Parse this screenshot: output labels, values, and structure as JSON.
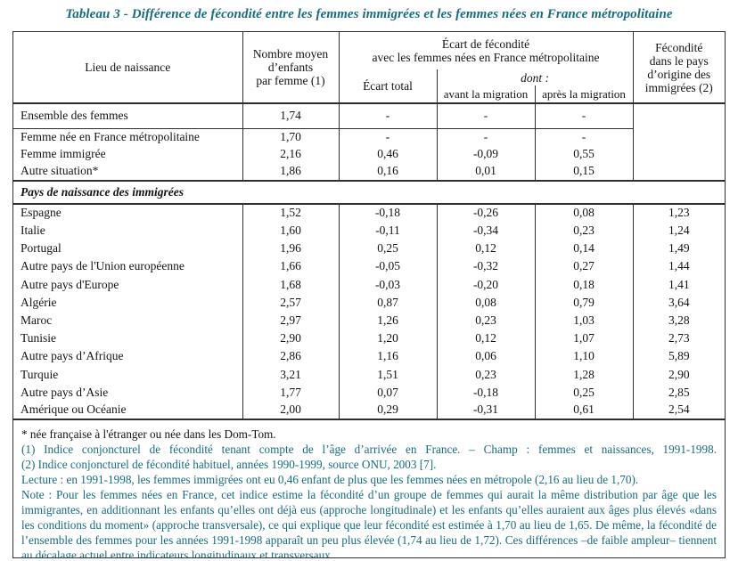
{
  "title": "Tableau 3 - Différence de fécondité entre les femmes immigrées et les femmes nées en France métropolitaine",
  "table": {
    "header": {
      "lieu_de_naissance": "Lieu de naissance",
      "nombre_moyen": "Nombre moyen\nd’enfants\npar femme (1)",
      "ecart_group": "Écart de fécondité\navec les femmes nées en France métropolitaine",
      "ecart_total": "Écart total",
      "dont": "dont :",
      "avant_migration": "avant la migration",
      "apres_migration": "après la migration",
      "fecondite_origine": "Fécondité\ndans le pays\nd’origine des\nimmigrées (2)"
    },
    "summary_rows": [
      {
        "label": "Ensemble des femmes",
        "values": [
          "1,74",
          "-",
          "-",
          "-"
        ]
      },
      {
        "label": "Femme née en France métropolitaine",
        "values": [
          "1,70",
          "-",
          "-",
          "-"
        ]
      },
      {
        "label": "Femme immigrée",
        "values": [
          "2,16",
          "0,46",
          "-0,09",
          "0,55"
        ]
      },
      {
        "label": "Autre situation*",
        "values": [
          "1,86",
          "0,16",
          "0,01",
          "0,15"
        ]
      }
    ],
    "section_header": "Pays de naissance des immigrées",
    "country_rows": [
      {
        "label": "Espagne",
        "values": [
          "1,52",
          "-0,18",
          "-0,26",
          "0,08",
          "1,23"
        ]
      },
      {
        "label": "Italie",
        "values": [
          "1,60",
          "-0,11",
          "-0,34",
          "0,23",
          "1,24"
        ]
      },
      {
        "label": "Portugal",
        "values": [
          "1,96",
          "0,25",
          "0,12",
          "0,14",
          "1,49"
        ]
      },
      {
        "label": "Autre pays de l'Union européenne",
        "values": [
          "1,66",
          "-0,05",
          "-0,32",
          "0,27",
          "1,44"
        ]
      },
      {
        "label": "Autre pays d'Europe",
        "values": [
          "1,68",
          "-0,03",
          "-0,20",
          "0,18",
          "1,41"
        ]
      },
      {
        "label": "Algérie",
        "values": [
          "2,57",
          "0,87",
          "0,08",
          "0,79",
          "3,64"
        ]
      },
      {
        "label": "Maroc",
        "values": [
          "2,97",
          "1,26",
          "0,23",
          "1,03",
          "3,28"
        ]
      },
      {
        "label": "Tunisie",
        "values": [
          "2,90",
          "1,20",
          "0,12",
          "1,07",
          "2,73"
        ]
      },
      {
        "label": "Autre pays d’Afrique",
        "values": [
          "2,86",
          "1,16",
          "0,06",
          "1,10",
          "5,89"
        ]
      },
      {
        "label": "Turquie",
        "values": [
          "3,21",
          "1,51",
          "0,23",
          "1,28",
          "2,90"
        ]
      },
      {
        "label": "Autre pays d’Asie",
        "values": [
          "1,77",
          "0,07",
          "-0,18",
          "0,25",
          "2,85"
        ]
      },
      {
        "label": "Amérique ou Océanie",
        "values": [
          "2,00",
          "0,29",
          "-0,31",
          "0,61",
          "2,54"
        ]
      }
    ]
  },
  "footnotes": {
    "star": "* née française à l'étranger ou née dans les Dom-Tom.",
    "note1": "(1) Indice conjoncturel de fécondité tenant compte de l’âge d’arrivée en France. – Champ : femmes et naissances, 1991-1998.",
    "note2": "(2) Indice conjoncturel de fécondité habituel, années 1990-1999, source ONU, 2003 [7].",
    "lecture": "Lecture : en 1991-1998, les femmes immigrées ont eu 0,46 enfant de plus que les femmes nées en métropole (2,16 au lieu de 1,70).",
    "note": "Note : Pour les femmes nées en France, cet indice estime la fécondité d’un groupe de femmes qui aurait la même distribution par âge que les immigrantes, en additionnant les enfants qu’elles ont déjà eus (approche longitudinale) et les enfants qu’elles auraient aux âges plus élevés «dans les conditions du moment» (approche transversale), ce qui explique que leur fécondité est estimée à 1,70 au lieu de 1,65. De même, la fécondité de l’ensemble des femmes pour les années 1991-1998 apparaît un peu plus élevée (1,74 au lieu de 1,72). Ces différences –de faible ampleur– tiennent au décalage actuel entre indicateurs longitudinaux et transversaux."
  },
  "colors": {
    "accent_teal": "#176c7f",
    "border": "#2e2e2e",
    "text": "#141414"
  }
}
